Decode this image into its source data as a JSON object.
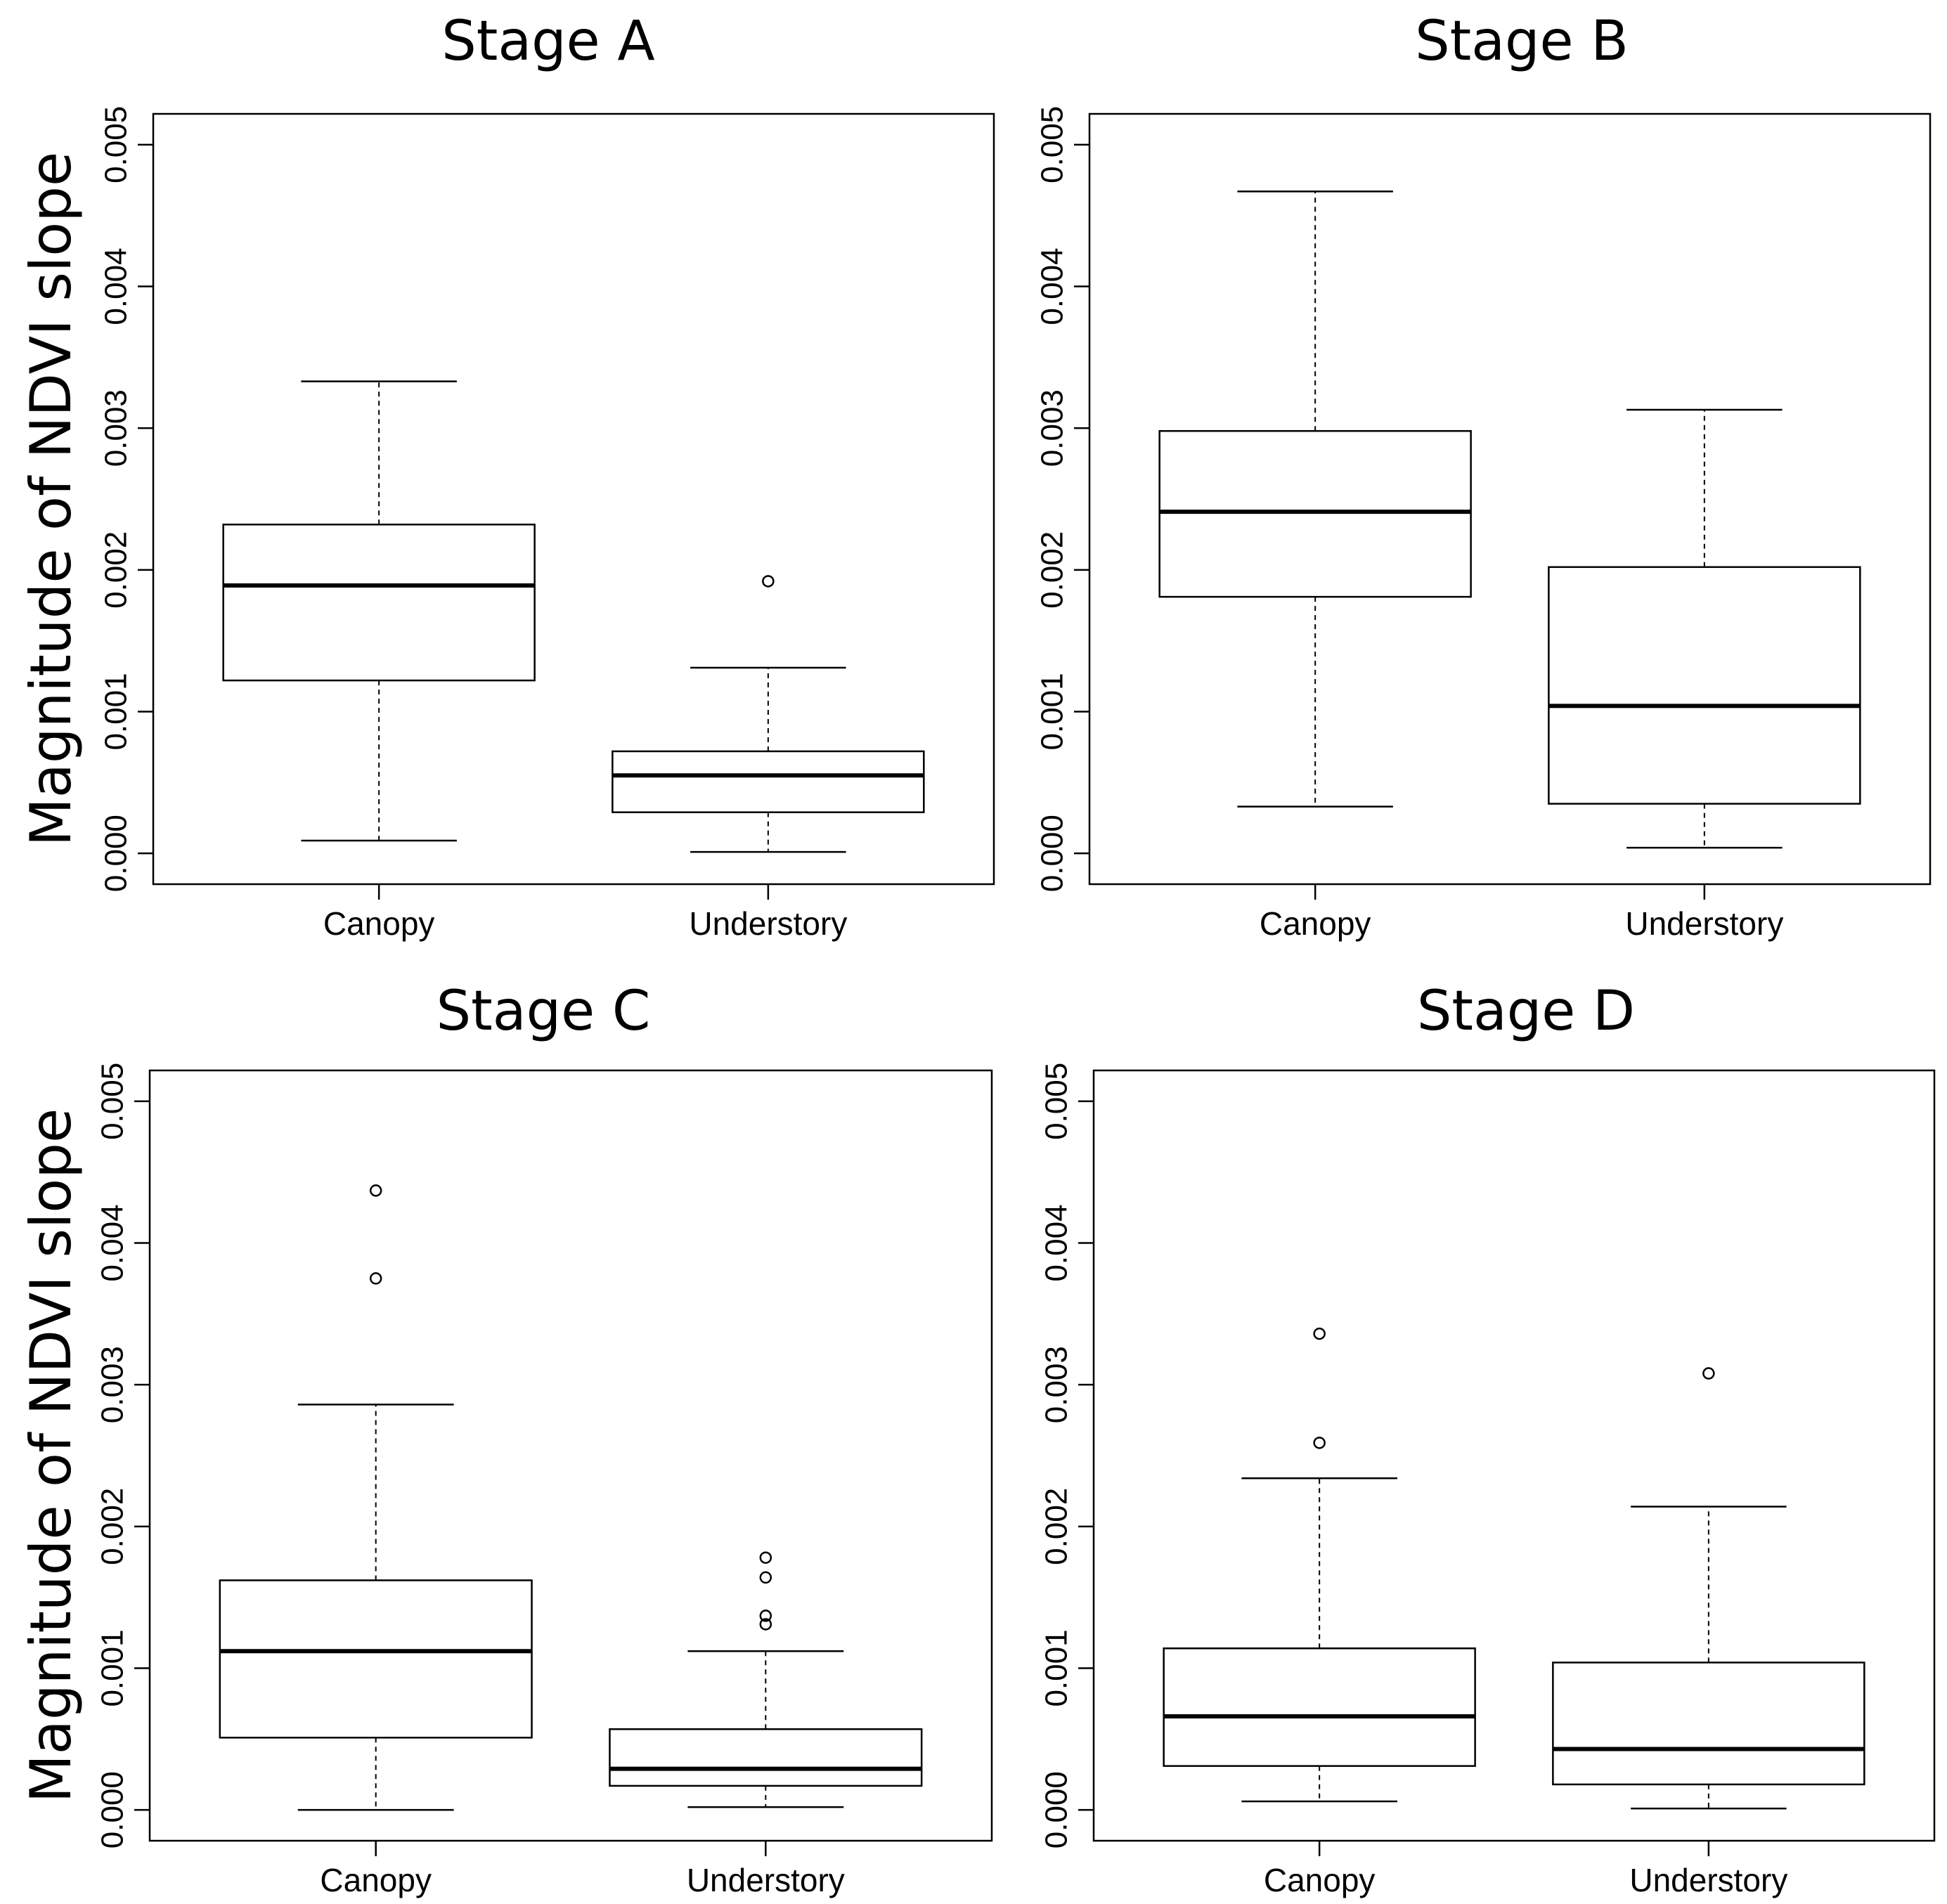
{
  "chart_data": [
    {
      "type": "box",
      "title": "Stage A",
      "ylabel": "Magnitude of NDVI slope",
      "ylim": [
        0,
        0.005
      ],
      "yticks": [
        "0.000",
        "0.001",
        "0.002",
        "0.003",
        "0.004",
        "0.005"
      ],
      "categories": [
        "Canopy",
        "Understory"
      ],
      "boxes": [
        {
          "whisker_low": 9e-05,
          "q1": 0.00122,
          "median": 0.00189,
          "q3": 0.00232,
          "whisker_high": 0.00333,
          "outliers": []
        },
        {
          "whisker_low": 1e-05,
          "q1": 0.00029,
          "median": 0.00055,
          "q3": 0.00072,
          "whisker_high": 0.00131,
          "outliers": [
            0.00192
          ]
        }
      ]
    },
    {
      "type": "box",
      "title": "Stage B",
      "ylabel": "",
      "ylim": [
        0,
        0.005
      ],
      "yticks": [
        "0.000",
        "0.001",
        "0.002",
        "0.003",
        "0.004",
        "0.005"
      ],
      "categories": [
        "Canopy",
        "Understory"
      ],
      "boxes": [
        {
          "whisker_low": 0.00033,
          "q1": 0.00181,
          "median": 0.00241,
          "q3": 0.00298,
          "whisker_high": 0.00467,
          "outliers": []
        },
        {
          "whisker_low": 4e-05,
          "q1": 0.00035,
          "median": 0.00104,
          "q3": 0.00202,
          "whisker_high": 0.00313,
          "outliers": []
        }
      ]
    },
    {
      "type": "box",
      "title": "Stage C",
      "ylabel": "Magnitude of NDVI slope",
      "ylim": [
        0,
        0.005
      ],
      "yticks": [
        "0.000",
        "0.001",
        "0.002",
        "0.003",
        "0.004",
        "0.005"
      ],
      "categories": [
        "Canopy",
        "Understory"
      ],
      "boxes": [
        {
          "whisker_low": 0.0,
          "q1": 0.00051,
          "median": 0.00112,
          "q3": 0.00162,
          "whisker_high": 0.00286,
          "outliers": [
            0.00437,
            0.00375
          ]
        },
        {
          "whisker_low": 2e-05,
          "q1": 0.00017,
          "median": 0.00029,
          "q3": 0.00057,
          "whisker_high": 0.00112,
          "outliers": [
            0.00178,
            0.00164,
            0.00137,
            0.00131
          ]
        }
      ]
    },
    {
      "type": "box",
      "title": "Stage D",
      "ylabel": "",
      "ylim": [
        0,
        0.005
      ],
      "yticks": [
        "0.000",
        "0.001",
        "0.002",
        "0.003",
        "0.004",
        "0.005"
      ],
      "categories": [
        "Canopy",
        "Understory"
      ],
      "boxes": [
        {
          "whisker_low": 6e-05,
          "q1": 0.00031,
          "median": 0.00066,
          "q3": 0.00114,
          "whisker_high": 0.00234,
          "outliers": [
            0.00336,
            0.00259
          ]
        },
        {
          "whisker_low": 1e-05,
          "q1": 0.00018,
          "median": 0.00043,
          "q3": 0.00104,
          "whisker_high": 0.00214,
          "outliers": [
            0.00308
          ]
        }
      ]
    }
  ]
}
